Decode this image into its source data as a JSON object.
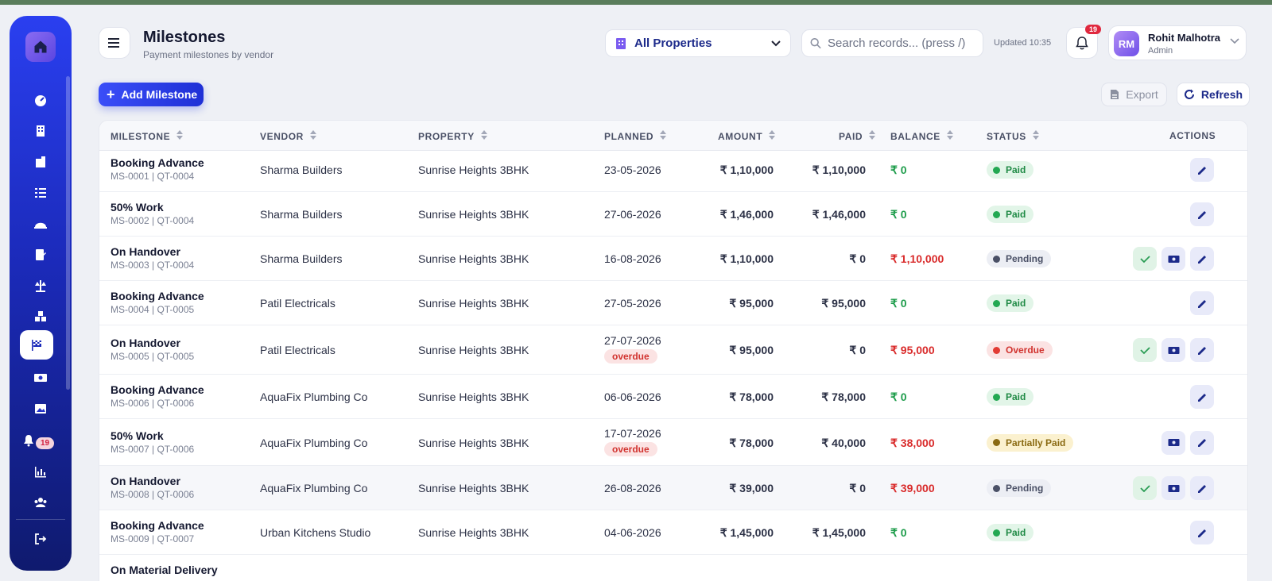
{
  "header": {
    "title": "Milestones",
    "subtitle": "Payment milestones by vendor",
    "property_select": "All Properties",
    "search_placeholder": "Search records... (press /)",
    "updated": "Updated 10:35",
    "notification_count": "19"
  },
  "user": {
    "initials": "RM",
    "name": "Rohit Malhotra",
    "role": "Admin"
  },
  "sidebar": {
    "badge": "19",
    "items": [
      {
        "icon": "dashboard-icon"
      },
      {
        "icon": "building-icon"
      },
      {
        "icon": "property-icon"
      },
      {
        "icon": "checklist-icon"
      },
      {
        "icon": "hardhat-icon"
      },
      {
        "icon": "quotation-icon"
      },
      {
        "icon": "scale-icon"
      },
      {
        "icon": "boxes-icon"
      },
      {
        "icon": "flag-checkered-icon",
        "active": true
      },
      {
        "icon": "money-icon"
      },
      {
        "icon": "images-icon"
      },
      {
        "icon": "bell-icon"
      },
      {
        "icon": "chart-icon"
      },
      {
        "icon": "users-icon"
      },
      {
        "icon": "logout-icon"
      }
    ]
  },
  "toolbar": {
    "add_label": "Add Milestone",
    "export_label": "Export",
    "refresh_label": "Refresh"
  },
  "table": {
    "headers": [
      "MILESTONE",
      "VENDOR",
      "PROPERTY",
      "PLANNED",
      "AMOUNT",
      "PAID",
      "BALANCE",
      "STATUS",
      "ACTIONS"
    ],
    "rows": [
      {
        "title": "Booking Advance",
        "sub": "MS-0001 | QT-0004",
        "vendor": "Sharma Builders",
        "property": "Sunrise Heights 3BHK",
        "planned": "23-05-2026",
        "overdue": "",
        "amount": "₹ 1,10,000",
        "paid": "₹ 1,10,000",
        "balance": "₹ 0",
        "status": "Paid",
        "actions": [
          "edit"
        ]
      },
      {
        "title": "50% Work",
        "sub": "MS-0002 | QT-0004",
        "vendor": "Sharma Builders",
        "property": "Sunrise Heights 3BHK",
        "planned": "27-06-2026",
        "overdue": "",
        "amount": "₹ 1,46,000",
        "paid": "₹ 1,46,000",
        "balance": "₹ 0",
        "status": "Paid",
        "actions": [
          "edit"
        ]
      },
      {
        "title": "On Handover",
        "sub": "MS-0003 | QT-0004",
        "vendor": "Sharma Builders",
        "property": "Sunrise Heights 3BHK",
        "planned": "16-08-2026",
        "overdue": "",
        "amount": "₹ 1,10,000",
        "paid": "₹ 0",
        "balance": "₹ 1,10,000",
        "status": "Pending",
        "actions": [
          "check",
          "pay",
          "edit"
        ]
      },
      {
        "title": "Booking Advance",
        "sub": "MS-0004 | QT-0005",
        "vendor": "Patil Electricals",
        "property": "Sunrise Heights 3BHK",
        "planned": "27-05-2026",
        "overdue": "",
        "amount": "₹ 95,000",
        "paid": "₹ 95,000",
        "balance": "₹ 0",
        "status": "Paid",
        "actions": [
          "edit"
        ]
      },
      {
        "title": "On Handover",
        "sub": "MS-0005 | QT-0005",
        "vendor": "Patil Electricals",
        "property": "Sunrise Heights 3BHK",
        "planned": "27-07-2026",
        "overdue": "overdue",
        "amount": "₹ 95,000",
        "paid": "₹ 0",
        "balance": "₹ 95,000",
        "status": "Overdue",
        "actions": [
          "check",
          "pay",
          "edit"
        ]
      },
      {
        "title": "Booking Advance",
        "sub": "MS-0006 | QT-0006",
        "vendor": "AquaFix Plumbing Co",
        "property": "Sunrise Heights 3BHK",
        "planned": "06-06-2026",
        "overdue": "",
        "amount": "₹ 78,000",
        "paid": "₹ 78,000",
        "balance": "₹ 0",
        "status": "Paid",
        "actions": [
          "edit"
        ]
      },
      {
        "title": "50% Work",
        "sub": "MS-0007 | QT-0006",
        "vendor": "AquaFix Plumbing Co",
        "property": "Sunrise Heights 3BHK",
        "planned": "17-07-2026",
        "overdue": "overdue",
        "amount": "₹ 78,000",
        "paid": "₹ 40,000",
        "balance": "₹ 38,000",
        "status": "Partially Paid",
        "actions": [
          "pay",
          "edit"
        ]
      },
      {
        "title": "On Handover",
        "sub": "MS-0008 | QT-0006",
        "vendor": "AquaFix Plumbing Co",
        "property": "Sunrise Heights 3BHK",
        "planned": "26-08-2026",
        "overdue": "",
        "amount": "₹ 39,000",
        "paid": "₹ 0",
        "balance": "₹ 39,000",
        "status": "Pending",
        "actions": [
          "check",
          "pay",
          "edit"
        ]
      },
      {
        "title": "Booking Advance",
        "sub": "MS-0009 | QT-0007",
        "vendor": "Urban Kitchens Studio",
        "property": "Sunrise Heights 3BHK",
        "planned": "04-06-2026",
        "overdue": "",
        "amount": "₹ 1,45,000",
        "paid": "₹ 1,45,000",
        "balance": "₹ 0",
        "status": "Paid",
        "actions": [
          "edit"
        ]
      },
      {
        "title": "On Material Delivery",
        "sub": "",
        "vendor": "",
        "property": "",
        "planned": "",
        "overdue": "",
        "amount": "",
        "paid": "",
        "balance": "",
        "status": "",
        "actions": []
      }
    ]
  },
  "colors": {
    "accent": "#2a3ff0",
    "paid": "#1f9d4c",
    "due": "#d92b2b"
  }
}
